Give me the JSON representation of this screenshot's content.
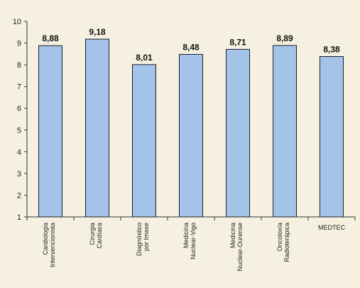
{
  "chart_data": {
    "type": "bar",
    "title": "",
    "xlabel": "",
    "ylabel": "",
    "ylim": [
      1,
      10
    ],
    "yticks": [
      1,
      2,
      3,
      4,
      5,
      6,
      7,
      8,
      9,
      10
    ],
    "grid": false,
    "categories": [
      [
        "Cardiologia",
        "Intervencionista"
      ],
      [
        "Cirurgia",
        "Cardíaca"
      ],
      [
        "Diagnóstico",
        "por Imaxe"
      ],
      [
        "Medicina",
        "Nuclear-Vigo"
      ],
      [
        "Medicina",
        "Nuclear-Ourense"
      ],
      [
        "Oncoloxía",
        "Radioterápica"
      ],
      [
        "MEDTEC"
      ]
    ],
    "values": [
      8.88,
      9.18,
      8.01,
      8.48,
      8.71,
      8.89,
      8.38
    ],
    "value_labels": [
      "8,88",
      "9,18",
      "8,01",
      "8,48",
      "8,71",
      "8,89",
      "8,38"
    ],
    "bar_color": "#a4c3e8"
  }
}
